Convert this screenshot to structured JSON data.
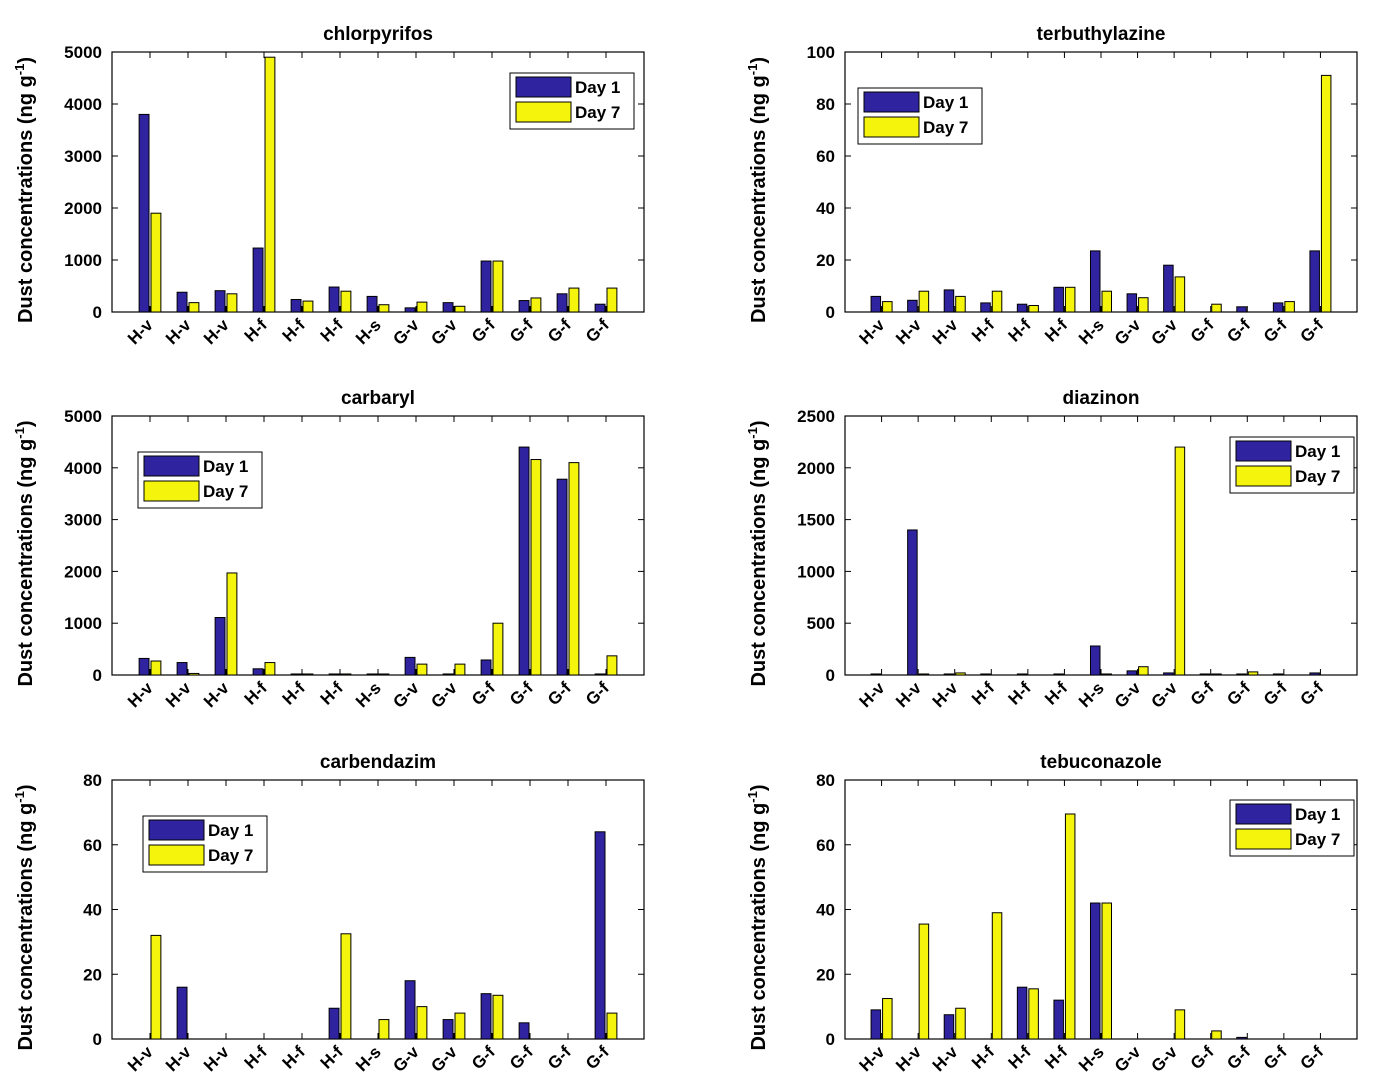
{
  "colors": {
    "series_1": "#2f23a0",
    "series_2": "#f4f40c",
    "bar_stroke": "#000000"
  },
  "chart_data": [
    {
      "type": "bar",
      "title": "chlorpyrifos",
      "ylabel": "Dust concentrations (ng g",
      "ylabel_sup": "-1",
      "ylabel_close": ")",
      "ylim": [
        0,
        5000
      ],
      "yticks": [
        "0",
        "1000",
        "2000",
        "3000",
        "4000",
        "5000"
      ],
      "categories": [
        "H-v",
        "H-v",
        "H-v",
        "H-f",
        "H-f",
        "H-f",
        "H-s",
        "G-v",
        "G-v",
        "G-f",
        "G-f",
        "G-f",
        "G-f"
      ],
      "legend": "top-right",
      "series": [
        {
          "name": "Day 1",
          "values": [
            3800,
            380,
            410,
            1230,
            240,
            480,
            300,
            80,
            180,
            980,
            220,
            350,
            150
          ]
        },
        {
          "name": "Day 7",
          "values": [
            1900,
            180,
            350,
            4900,
            210,
            400,
            140,
            190,
            110,
            980,
            270,
            460,
            460
          ]
        }
      ]
    },
    {
      "type": "bar",
      "title": "terbuthylazine",
      "ylabel": "Dust concentrations (ng g",
      "ylabel_sup": "-1",
      "ylabel_close": ")",
      "ylim": [
        0,
        100
      ],
      "yticks": [
        "0",
        "20",
        "40",
        "60",
        "80",
        "100"
      ],
      "categories": [
        "H-v",
        "H-v",
        "H-v",
        "H-f",
        "H-f",
        "H-f",
        "H-s",
        "G-v",
        "G-v",
        "G-f",
        "G-f",
        "G-f",
        "G-f"
      ],
      "legend": "top-left",
      "series": [
        {
          "name": "Day 1",
          "values": [
            6,
            4.5,
            8.5,
            3.5,
            3,
            9.5,
            23.5,
            7,
            18,
            0,
            2,
            3.5,
            23.5
          ]
        },
        {
          "name": "Day 7",
          "values": [
            4,
            8,
            6,
            8,
            2.5,
            9.5,
            8,
            5.5,
            13.5,
            3,
            0,
            4,
            91
          ]
        }
      ]
    },
    {
      "type": "bar",
      "title": "carbaryl",
      "ylabel": "Dust concentrations (ng g",
      "ylabel_sup": "-1",
      "ylabel_close": ")",
      "ylim": [
        0,
        5000
      ],
      "yticks": [
        "0",
        "1000",
        "2000",
        "3000",
        "4000",
        "5000"
      ],
      "categories": [
        "H-v",
        "H-v",
        "H-v",
        "H-f",
        "H-f",
        "H-f",
        "H-s",
        "G-v",
        "G-v",
        "G-f",
        "G-f",
        "G-f",
        "G-f"
      ],
      "legend": "top-left",
      "series": [
        {
          "name": "Day 1",
          "values": [
            320,
            240,
            1110,
            120,
            20,
            20,
            20,
            340,
            20,
            290,
            4400,
            3780,
            20
          ]
        },
        {
          "name": "Day 7",
          "values": [
            270,
            30,
            1970,
            240,
            20,
            20,
            20,
            210,
            210,
            1000,
            4160,
            4100,
            370
          ]
        }
      ]
    },
    {
      "type": "bar",
      "title": "diazinon",
      "ylabel": "Dust concentrations (ng g",
      "ylabel_sup": "-1",
      "ylabel_close": ")",
      "ylim": [
        0,
        2500
      ],
      "yticks": [
        "0",
        "500",
        "1000",
        "1500",
        "2000",
        "2500"
      ],
      "categories": [
        "H-v",
        "H-v",
        "H-v",
        "H-f",
        "H-f",
        "H-f",
        "H-s",
        "G-v",
        "G-v",
        "G-f",
        "G-f",
        "G-f",
        "G-f"
      ],
      "legend": "top-right",
      "series": [
        {
          "name": "Day 1",
          "values": [
            10,
            1400,
            10,
            10,
            10,
            10,
            280,
            40,
            20,
            10,
            10,
            10,
            20
          ]
        },
        {
          "name": "Day 7",
          "values": [
            0,
            10,
            20,
            0,
            0,
            0,
            10,
            80,
            2200,
            10,
            30,
            0,
            0
          ]
        }
      ]
    },
    {
      "type": "bar",
      "title": "carbendazim",
      "ylabel": "Dust concentrations (ng g",
      "ylabel_sup": "-1",
      "ylabel_close": ")",
      "ylim": [
        0,
        80
      ],
      "yticks": [
        "0",
        "20",
        "40",
        "60",
        "80"
      ],
      "categories": [
        "H-v",
        "H-v",
        "H-v",
        "H-f",
        "H-f",
        "H-f",
        "H-s",
        "G-v",
        "G-v",
        "G-f",
        "G-f",
        "G-f",
        "G-f"
      ],
      "legend": "top-left",
      "series": [
        {
          "name": "Day 1",
          "values": [
            0,
            16,
            0,
            0,
            0,
            9.5,
            0,
            18,
            6,
            14,
            5,
            0,
            64
          ]
        },
        {
          "name": "Day 7",
          "values": [
            32,
            0,
            0,
            0,
            0,
            32.5,
            6,
            10,
            8,
            13.5,
            0,
            0,
            8
          ]
        }
      ]
    },
    {
      "type": "bar",
      "title": "tebuconazole",
      "ylabel": "Dust concentrations (ng g",
      "ylabel_sup": "-1",
      "ylabel_close": ")",
      "ylim": [
        0,
        80
      ],
      "yticks": [
        "0",
        "20",
        "40",
        "60",
        "80"
      ],
      "categories": [
        "H-v",
        "H-v",
        "H-v",
        "H-f",
        "H-f",
        "H-f",
        "H-s",
        "G-v",
        "G-v",
        "G-f",
        "G-f",
        "G-f",
        "G-f"
      ],
      "legend": "top-right",
      "series": [
        {
          "name": "Day 1",
          "values": [
            9,
            0,
            7.5,
            0,
            16,
            12,
            42,
            0,
            0,
            0,
            0.5,
            0,
            0
          ]
        },
        {
          "name": "Day 7",
          "values": [
            12.5,
            35.5,
            9.5,
            39,
            15.5,
            69.5,
            42,
            0,
            9,
            2.5,
            0,
            0,
            0
          ]
        }
      ]
    }
  ]
}
